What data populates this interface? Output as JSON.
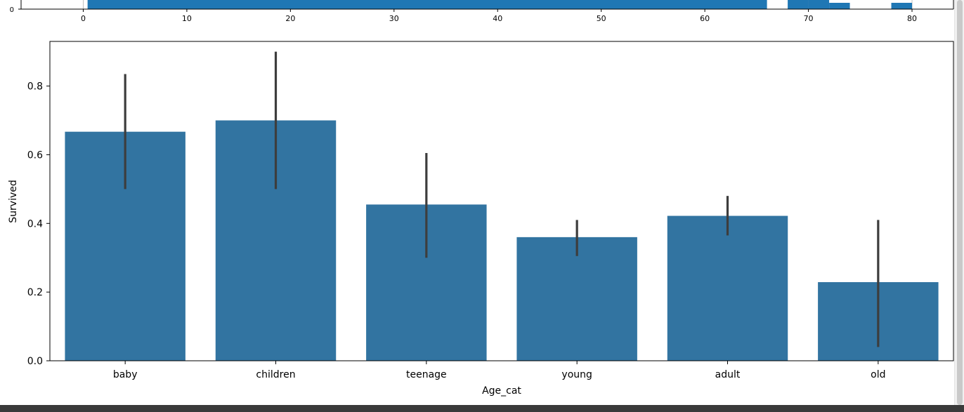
{
  "chart_data": [
    {
      "type": "bar",
      "title": "",
      "xlabel": "",
      "ylabel": "",
      "bar_color": "#1f77b4",
      "grid": true,
      "xlim": [
        -6,
        84
      ],
      "x_ticks": [
        0,
        10,
        20,
        30,
        40,
        50,
        60,
        70,
        80
      ],
      "y_ticks": [
        0
      ],
      "bins": [
        {
          "from": 0.42,
          "to": 66,
          "value": 1
        },
        {
          "from": 68,
          "to": 70,
          "value": 1
        },
        {
          "from": 70,
          "to": 72,
          "value": 1
        },
        {
          "from": 72,
          "to": 74,
          "value": 0.5
        },
        {
          "from": 78,
          "to": 80,
          "value": 0.5
        }
      ]
    },
    {
      "type": "bar",
      "title": "",
      "xlabel": "Age_cat",
      "ylabel": "Survived",
      "bar_color": "#3274a1",
      "errorbar_color": "#3d3d3d",
      "categories": [
        "baby",
        "children",
        "teenage",
        "young",
        "adult",
        "old"
      ],
      "values": [
        0.667,
        0.7,
        0.455,
        0.36,
        0.422,
        0.229
      ],
      "ci_low": [
        0.5,
        0.5,
        0.3,
        0.305,
        0.365,
        0.04
      ],
      "ci_high": [
        0.835,
        0.9,
        0.605,
        0.41,
        0.48,
        0.41
      ],
      "ylim": [
        0,
        0.93
      ],
      "y_ticks": [
        0.0,
        0.2,
        0.4,
        0.6,
        0.8
      ],
      "y_tick_labels": [
        "0.0",
        "0.2",
        "0.4",
        "0.6",
        "0.8"
      ],
      "grid": false
    }
  ]
}
